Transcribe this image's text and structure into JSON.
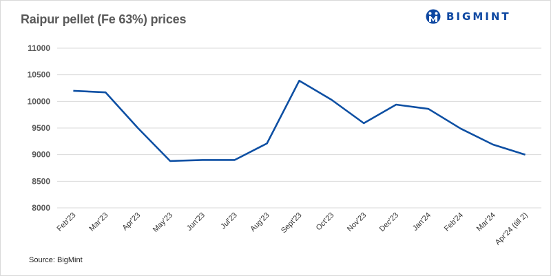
{
  "header": {
    "title": "Raipur pellet (Fe 63%) prices",
    "logo_text": "BIGMINT",
    "logo_icon": "bigmint-people-icon"
  },
  "footer": {
    "source": "Source: BigMint"
  },
  "colors": {
    "line": "#0d4fa3",
    "grid": "#d9d9d9",
    "brand": "#0d47a1"
  },
  "chart_data": {
    "type": "line",
    "title": "Raipur pellet (Fe 63%) prices",
    "xlabel": "",
    "ylabel": "",
    "ylim": [
      8000,
      11000
    ],
    "yticks": [
      8000,
      8500,
      9000,
      9500,
      10000,
      10500,
      11000
    ],
    "grid": true,
    "legend": null,
    "categories": [
      "Feb'23",
      "Mar'23",
      "Apr'23",
      "May'23",
      "Jun'23",
      "Jul'23",
      "Aug'23",
      "Sept'23",
      "Oct'23",
      "Nov'23",
      "Dec'23",
      "Jan'24",
      "Feb'24",
      "Mar'24",
      "Apr'24 (till 2)"
    ],
    "series": [
      {
        "name": "Raipur pellet (Fe 63%)",
        "values": [
          10200,
          10170,
          9500,
          8880,
          8900,
          8900,
          9210,
          10390,
          10030,
          9590,
          9940,
          9860,
          9490,
          9190,
          9000
        ]
      }
    ]
  }
}
